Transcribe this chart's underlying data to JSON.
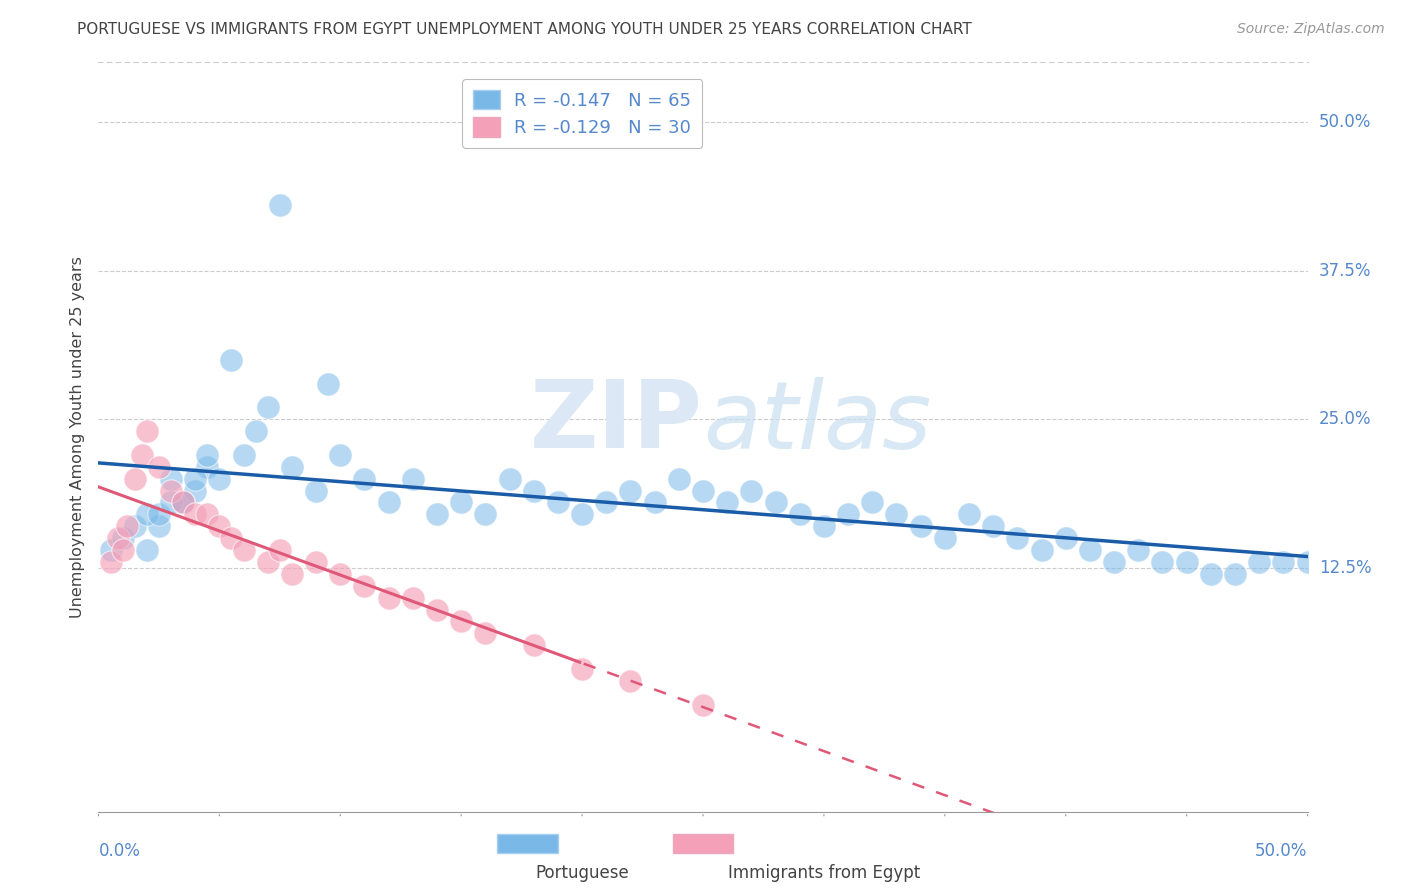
{
  "title": "PORTUGUESE VS IMMIGRANTS FROM EGYPT UNEMPLOYMENT AMONG YOUTH UNDER 25 YEARS CORRELATION CHART",
  "source": "Source: ZipAtlas.com",
  "ylabel": "Unemployment Among Youth under 25 years",
  "ytick_labels": [
    "12.5%",
    "25.0%",
    "37.5%",
    "50.0%"
  ],
  "ytick_values": [
    0.125,
    0.25,
    0.375,
    0.5
  ],
  "xlim": [
    0.0,
    0.5
  ],
  "ylim": [
    -0.08,
    0.55
  ],
  "legend_entries": [
    {
      "label": "R = -0.147   N = 65",
      "color": "#a8c8f0"
    },
    {
      "label": "R = -0.129   N = 30",
      "color": "#f4a8bc"
    }
  ],
  "portuguese_x": [
    0.02,
    0.025,
    0.03,
    0.035,
    0.04,
    0.045,
    0.005,
    0.01,
    0.015,
    0.02,
    0.025,
    0.03,
    0.035,
    0.04,
    0.045,
    0.05,
    0.06,
    0.065,
    0.07,
    0.08,
    0.09,
    0.1,
    0.11,
    0.12,
    0.13,
    0.14,
    0.15,
    0.16,
    0.17,
    0.18,
    0.19,
    0.2,
    0.21,
    0.22,
    0.23,
    0.24,
    0.25,
    0.26,
    0.27,
    0.28,
    0.29,
    0.3,
    0.31,
    0.32,
    0.33,
    0.34,
    0.35,
    0.36,
    0.37,
    0.38,
    0.39,
    0.4,
    0.41,
    0.42,
    0.43,
    0.44,
    0.45,
    0.46,
    0.47,
    0.48,
    0.49,
    0.5,
    0.055,
    0.075,
    0.095
  ],
  "portuguese_y": [
    0.14,
    0.16,
    0.2,
    0.18,
    0.19,
    0.21,
    0.14,
    0.15,
    0.16,
    0.17,
    0.17,
    0.18,
    0.18,
    0.2,
    0.22,
    0.2,
    0.22,
    0.24,
    0.26,
    0.21,
    0.19,
    0.22,
    0.2,
    0.18,
    0.2,
    0.17,
    0.18,
    0.17,
    0.2,
    0.19,
    0.18,
    0.17,
    0.18,
    0.19,
    0.18,
    0.2,
    0.19,
    0.18,
    0.19,
    0.18,
    0.17,
    0.16,
    0.17,
    0.18,
    0.17,
    0.16,
    0.15,
    0.17,
    0.16,
    0.15,
    0.14,
    0.15,
    0.14,
    0.13,
    0.14,
    0.13,
    0.13,
    0.12,
    0.12,
    0.13,
    0.13,
    0.13,
    0.3,
    0.43,
    0.28
  ],
  "egypt_x": [
    0.005,
    0.008,
    0.01,
    0.012,
    0.015,
    0.018,
    0.02,
    0.025,
    0.03,
    0.035,
    0.04,
    0.045,
    0.05,
    0.055,
    0.06,
    0.07,
    0.075,
    0.08,
    0.09,
    0.1,
    0.11,
    0.12,
    0.13,
    0.14,
    0.15,
    0.16,
    0.18,
    0.2,
    0.22,
    0.25
  ],
  "egypt_y": [
    0.13,
    0.15,
    0.14,
    0.16,
    0.2,
    0.22,
    0.24,
    0.21,
    0.19,
    0.18,
    0.17,
    0.17,
    0.16,
    0.15,
    0.14,
    0.13,
    0.14,
    0.12,
    0.13,
    0.12,
    0.11,
    0.1,
    0.1,
    0.09,
    0.08,
    0.07,
    0.06,
    0.04,
    0.03,
    0.01
  ],
  "blue_color": "#7ab8e8",
  "pink_color": "#f4a0b8",
  "blue_line_color": "#1a5ca8",
  "pink_line_color": "#e05878",
  "background_color": "#ffffff",
  "grid_color": "#cccccc",
  "title_color": "#444444",
  "axis_label_color": "#5588cc"
}
